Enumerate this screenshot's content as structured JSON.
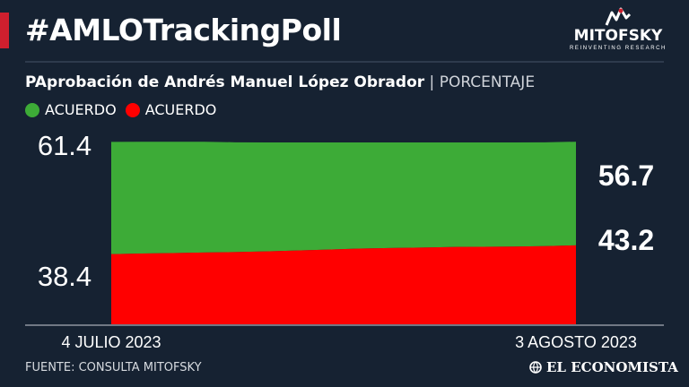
{
  "header": {
    "title": "#AMLOTrackingPoll",
    "accent_color": "#cf1f2e"
  },
  "logo": {
    "name": "MITOFSKY",
    "tagline": "REINVENTING RESEARCH"
  },
  "subtitle": {
    "title": "PAprobación de Andrés Manuel López Obrador",
    "separator": "|",
    "unit": "PORCENTAJE"
  },
  "footer": {
    "source": "FUENTE: CONSULTA MITOFSKY",
    "brand": "EL ECONOMISTA",
    "brand_icon": "globe-icon"
  },
  "chart_data": {
    "type": "area",
    "x_labels": [
      "4 JULIO 2023",
      "3 AGOSTO 2023"
    ],
    "series": [
      {
        "name": "ACUERDO",
        "color": "#3dab37",
        "values": [
          61.4,
          61.2,
          60.9,
          60.6,
          60.1,
          59.6,
          59.1,
          58.6,
          58.1,
          57.8,
          57.5,
          57.2,
          57.1,
          57.0,
          56.8,
          56.7
        ],
        "start_label": "61.4",
        "end_label": "56.7"
      },
      {
        "name": "ACUERDO",
        "color": "#ff0000",
        "values": [
          38.4,
          38.7,
          39.0,
          39.3,
          39.5,
          39.9,
          40.4,
          40.9,
          41.4,
          41.7,
          42.0,
          42.3,
          42.4,
          42.5,
          42.8,
          43.2
        ],
        "start_label": "38.4",
        "end_label": "43.2"
      }
    ],
    "stacked": true,
    "ylim": [
      0,
      100
    ],
    "grid": false,
    "legend": "top-left"
  }
}
